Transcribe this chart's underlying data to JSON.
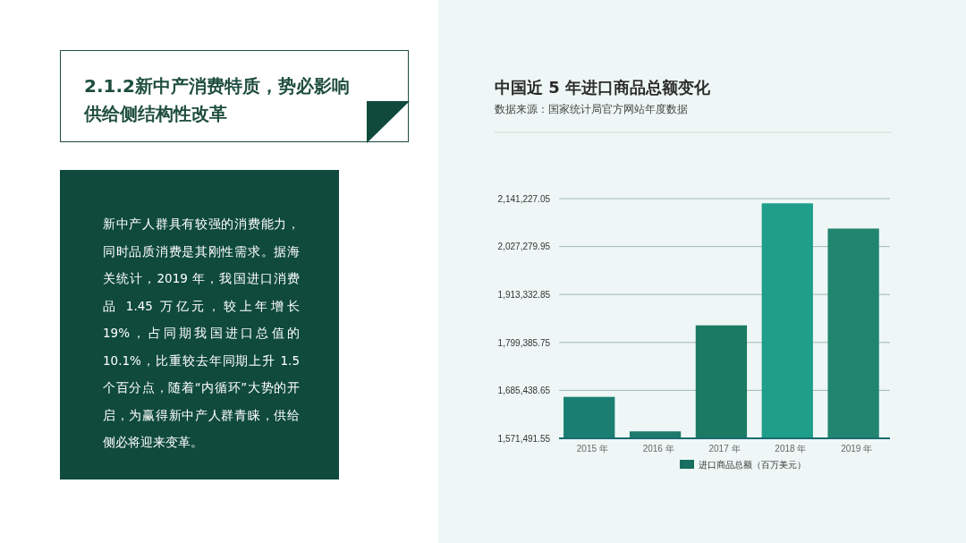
{
  "chart_data": [
    {
      "type": "other",
      "title": "2.1.2新中产消费特质，势必影响供给侧结构性改革",
      "annotations": [
        "新中产人群具有较强的消费能力，同时品质消费是其刚性需求。据海关统计，2019 年，我国进口消费品 1.45 万亿元，较上年增长 19%，占同期我国进口总值的 10.1%，比重较去年同期上升 1.5 个百分点，随着“内循环”大势的开启，为赢得新中产人群青睐，供给侧必将迎来变革。"
      ]
    },
    {
      "type": "bar",
      "title": "中国近 5 年进口商品总额变化",
      "subtitle": "数据来源：国家统计局官方网站年度数据",
      "categories": [
        "2015 年",
        "2016 年",
        "2017 年",
        "2018 年",
        "2019 年"
      ],
      "series": [
        {
          "name": "进口商品总额（百万美元）",
          "color": "#17705f",
          "colors": [
            "#1a7f72",
            "#1d7a6c",
            "#1b7a62",
            "#1f9e8a",
            "#218570"
          ],
          "values": [
            1670000,
            1588000,
            1840000,
            2130000,
            2070000
          ]
        }
      ],
      "ylim": [
        1571491.55,
        2141227.05
      ],
      "yticks": [
        {
          "value": 1571491.55,
          "label": "1,571,491.55"
        },
        {
          "value": 1685438.65,
          "label": "1,685,438.65"
        },
        {
          "value": 1799385.75,
          "label": "1,799,385.75"
        },
        {
          "value": 1913332.85,
          "label": "1,913,332.85"
        },
        {
          "value": 2027279.95,
          "label": "2,027,279.95"
        },
        {
          "value": 2141227.05,
          "label": "2,141,227.05"
        }
      ],
      "grid": "y",
      "legend": "bottom"
    }
  ]
}
